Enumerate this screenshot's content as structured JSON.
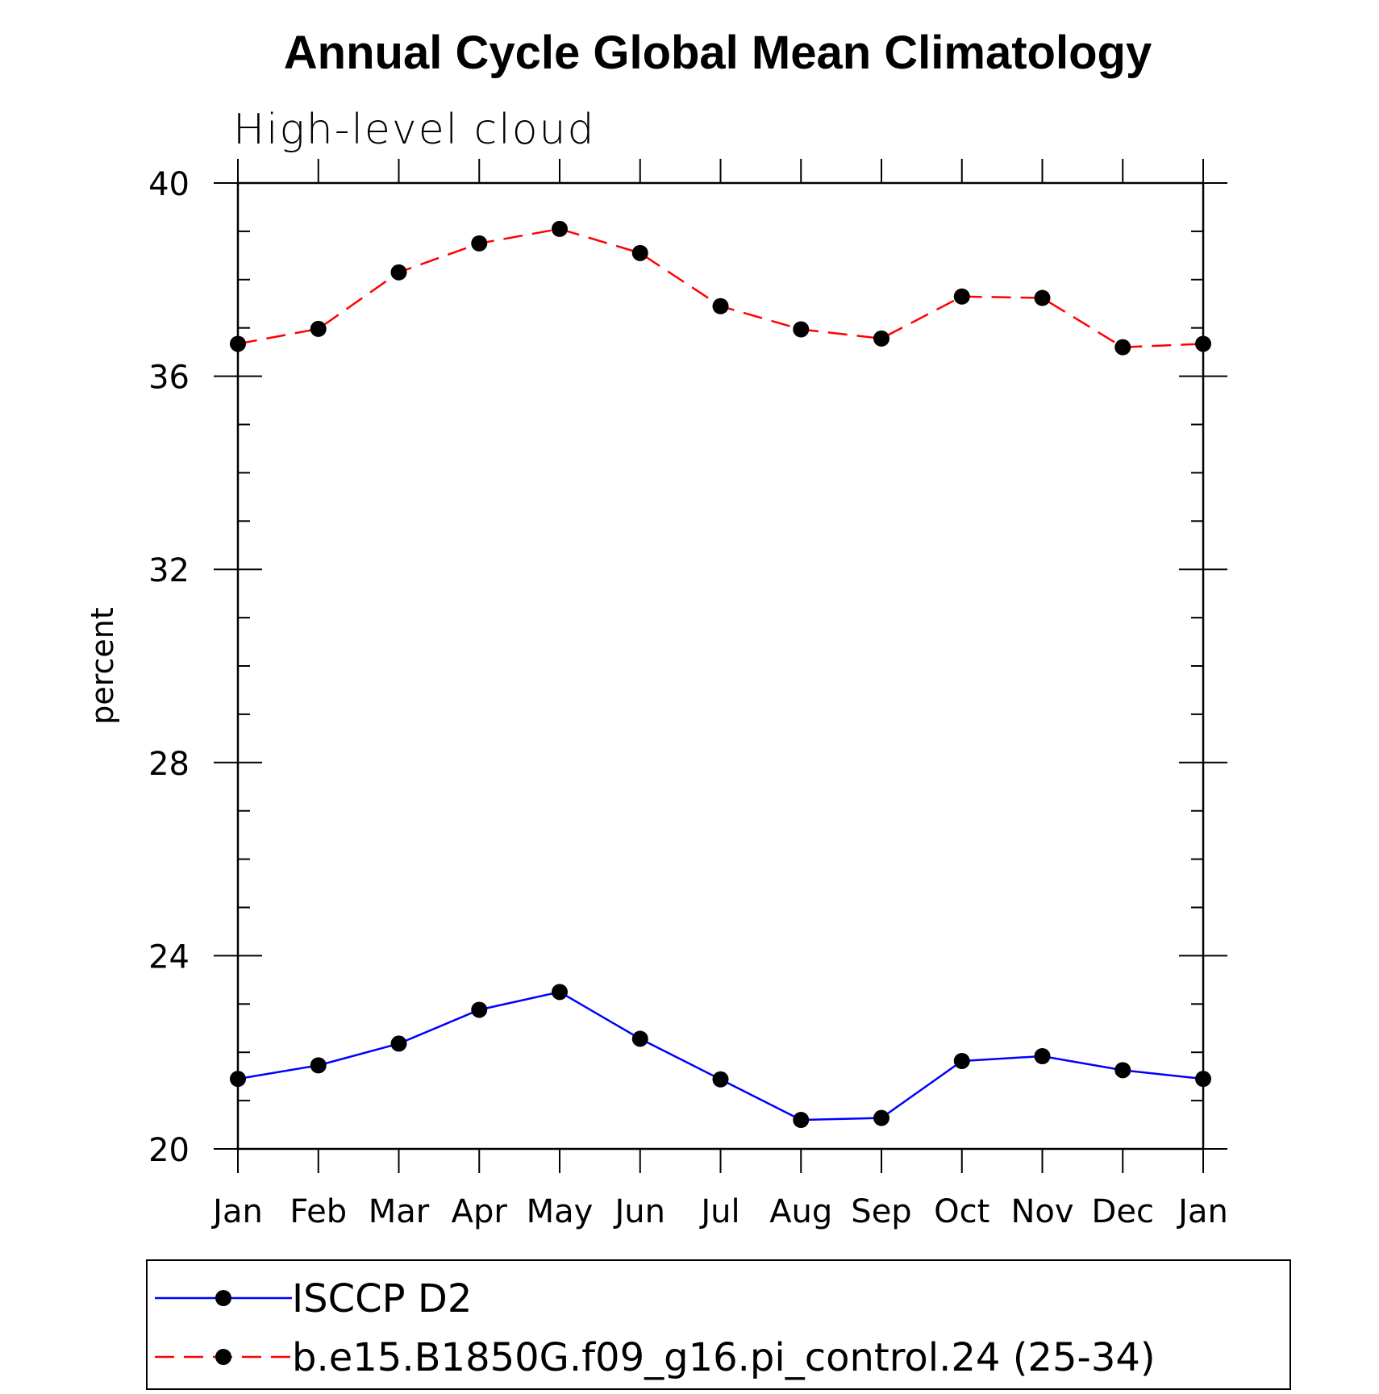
{
  "chart_data": {
    "type": "line",
    "title": "Annual Cycle Global Mean Climatology",
    "subtitle": "High-level cloud",
    "xlabel": "",
    "ylabel": "percent",
    "categories": [
      "Jan",
      "Feb",
      "Mar",
      "Apr",
      "May",
      "Jun",
      "Jul",
      "Aug",
      "Sep",
      "Oct",
      "Nov",
      "Dec",
      "Jan"
    ],
    "ylim": [
      20,
      40
    ],
    "yticks": [
      20,
      24,
      28,
      32,
      36,
      40
    ],
    "ytick_labels": [
      "20",
      "24",
      "28",
      "32",
      "36",
      "40"
    ],
    "grid": false,
    "legend_position": "bottom",
    "series": [
      {
        "name": "ISCCP D2",
        "color": "#0000ff",
        "line_style": "solid",
        "marker": "filled-circle",
        "values": [
          21.45,
          21.73,
          22.18,
          22.88,
          23.25,
          22.28,
          21.44,
          20.6,
          20.64,
          21.82,
          21.92,
          21.63,
          21.45
        ]
      },
      {
        "name": "b.e15.B1850G.f09_g16.pi_control.24 (25-34)",
        "color": "#ff0000",
        "line_style": "dashed",
        "marker": "filled-circle",
        "values": [
          36.67,
          36.98,
          38.15,
          38.75,
          39.05,
          38.55,
          37.45,
          36.97,
          36.78,
          37.65,
          37.62,
          36.6,
          36.67
        ]
      }
    ]
  }
}
